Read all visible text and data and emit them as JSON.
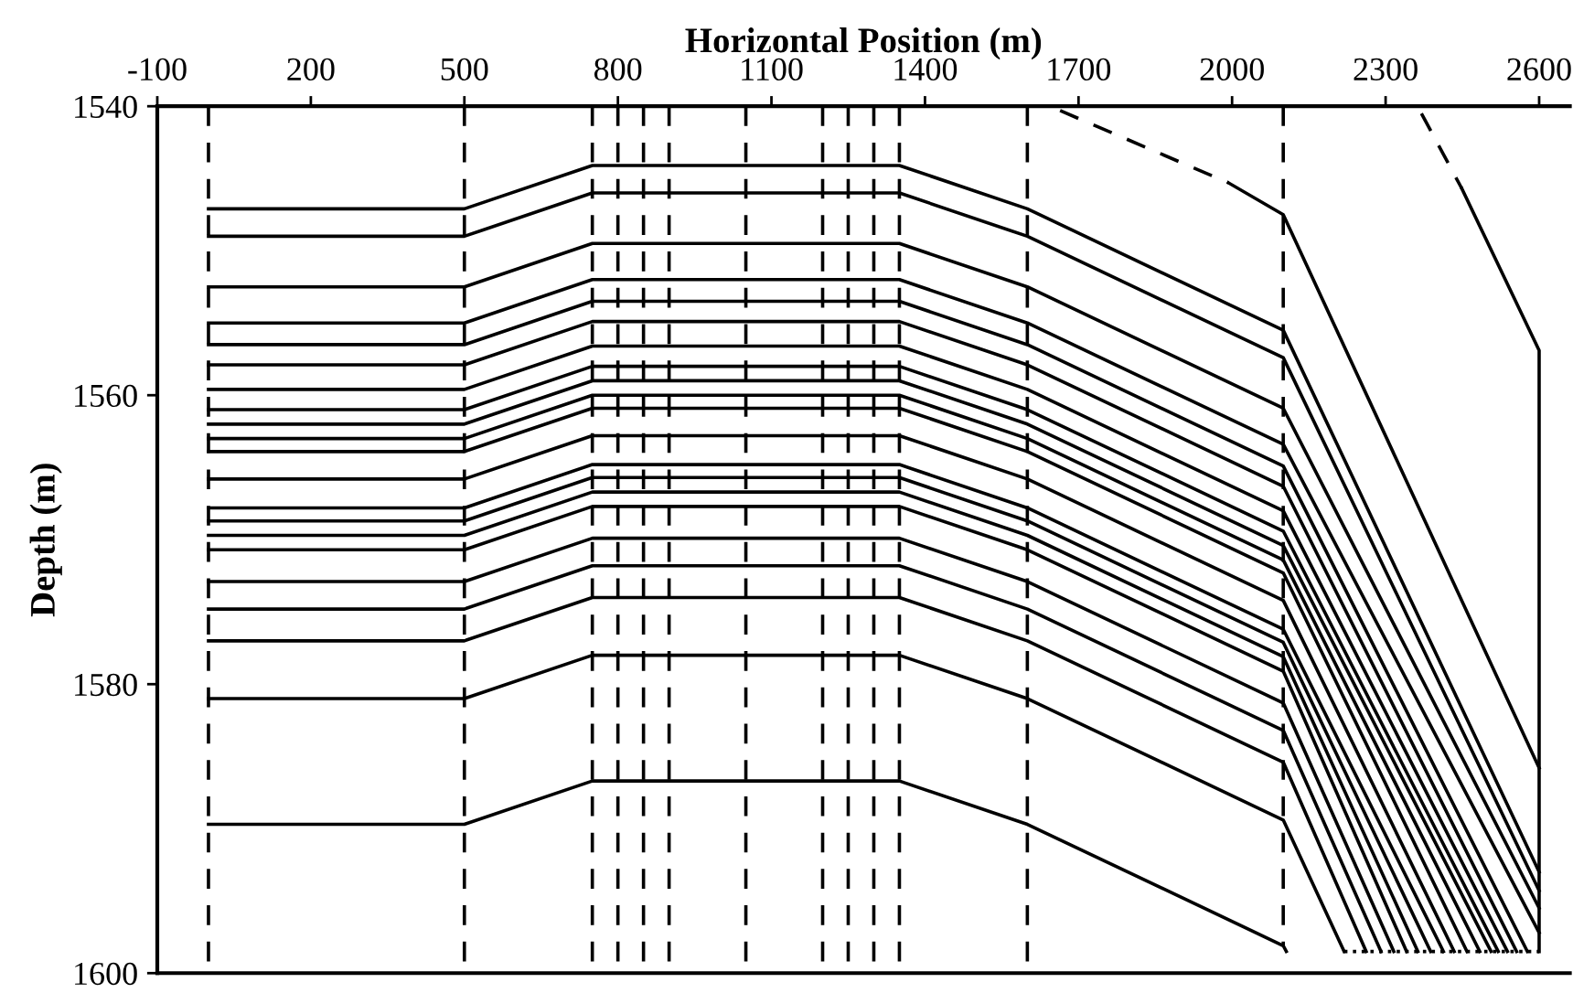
{
  "chart_data": {
    "type": "line",
    "xlabel": "Horizontal Position (m)",
    "ylabel": "Depth (m)",
    "xlim": [
      -100,
      2660
    ],
    "ylim": [
      1600,
      1540
    ],
    "xticks": [
      -100,
      200,
      500,
      800,
      1100,
      1400,
      1700,
      2000,
      2300,
      2600
    ],
    "yticks": [
      1540,
      1560,
      1580,
      1600
    ],
    "series": [
      {
        "color": "#000000",
        "line_style": "dashed",
        "x": [
          0,
          0
        ],
        "values": [
          1540,
          1600
        ]
      },
      {
        "color": "#000000",
        "line_style": "dashed",
        "x": [
          500,
          500
        ],
        "values": [
          1540,
          1600
        ]
      },
      {
        "color": "#000000",
        "line_style": "dashed",
        "x": [
          750,
          750
        ],
        "values": [
          1540,
          1600
        ]
      },
      {
        "color": "#000000",
        "line_style": "dashed",
        "x": [
          800,
          800
        ],
        "values": [
          1540,
          1600
        ]
      },
      {
        "color": "#000000",
        "line_style": "dashed",
        "x": [
          850,
          850
        ],
        "values": [
          1540,
          1600
        ]
      },
      {
        "color": "#000000",
        "line_style": "dashed",
        "x": [
          900,
          900
        ],
        "values": [
          1540,
          1600
        ]
      },
      {
        "color": "#000000",
        "line_style": "dashed",
        "x": [
          1050,
          1050
        ],
        "values": [
          1540,
          1600
        ]
      },
      {
        "color": "#000000",
        "line_style": "dashed",
        "x": [
          1200,
          1200
        ],
        "values": [
          1540,
          1600
        ]
      },
      {
        "color": "#000000",
        "line_style": "dashed",
        "x": [
          1250,
          1250
        ],
        "values": [
          1540,
          1600
        ]
      },
      {
        "color": "#000000",
        "line_style": "dashed",
        "x": [
          1300,
          1300
        ],
        "values": [
          1540,
          1600
        ]
      },
      {
        "color": "#000000",
        "line_style": "dashed",
        "x": [
          1350,
          1350
        ],
        "values": [
          1540,
          1600
        ]
      },
      {
        "color": "#000000",
        "line_style": "dashed",
        "x": [
          1600,
          1600
        ],
        "values": [
          1540,
          1600
        ]
      },
      {
        "color": "#000000",
        "line_style": "dashed",
        "x": [
          2100,
          2100
        ],
        "values": [
          1540,
          1598.1
        ]
      },
      {
        "color": "#000000",
        "x": [
          0,
          500,
          750,
          1350,
          1600,
          2100,
          2600
        ],
        "values": [
          1547.1,
          1547.1,
          1544.1,
          1544.1,
          1547.1,
          1555.5,
          1593.0
        ]
      },
      {
        "color": "#000000",
        "x": [
          0,
          500,
          750,
          1350,
          1600,
          2100,
          2600
        ],
        "values": [
          1549.0,
          1549.0,
          1546.0,
          1546.0,
          1549.0,
          1557.4,
          1594.3
        ]
      },
      {
        "color": "#000000",
        "x": [
          0,
          500,
          750,
          1350,
          1600,
          2100,
          2600
        ],
        "values": [
          1552.5,
          1552.5,
          1549.5,
          1549.5,
          1552.5,
          1560.9,
          1595.5
        ]
      },
      {
        "color": "#000000",
        "x": [
          0,
          500,
          750,
          1350,
          1600,
          2100,
          2600
        ],
        "values": [
          1555.0,
          1555.0,
          1552.0,
          1552.0,
          1555.0,
          1563.4,
          1597.2
        ]
      },
      {
        "color": "#000000",
        "x": [
          0,
          500,
          750,
          1350,
          1600,
          2100,
          2577
        ],
        "values": [
          1556.5,
          1556.5,
          1553.5,
          1553.5,
          1556.5,
          1564.9,
          1598.5
        ]
      },
      {
        "color": "#000000",
        "x": [
          0,
          500,
          750,
          1350,
          1600,
          2100,
          2556
        ],
        "values": [
          1557.9,
          1557.9,
          1554.9,
          1554.9,
          1557.9,
          1566.3,
          1598.5
        ]
      },
      {
        "color": "#000000",
        "x": [
          0,
          500,
          750,
          1350,
          1600,
          2100,
          2538
        ],
        "values": [
          1559.6,
          1559.6,
          1556.6,
          1556.6,
          1559.6,
          1568.0,
          1598.5
        ]
      },
      {
        "color": "#000000",
        "x": [
          0,
          500,
          750,
          1350,
          1600,
          2100,
          2520
        ],
        "values": [
          1561.0,
          1561.0,
          1558.0,
          1558.0,
          1561.0,
          1569.4,
          1598.5
        ]
      },
      {
        "color": "#000000",
        "x": [
          0,
          500,
          750,
          1350,
          1600,
          2100,
          2506
        ],
        "values": [
          1562.0,
          1562.0,
          1559.0,
          1559.0,
          1562.0,
          1570.4,
          1598.5
        ]
      },
      {
        "color": "#000000",
        "x": [
          0,
          500,
          750,
          1350,
          1600,
          2100,
          2484
        ],
        "values": [
          1563.0,
          1563.0,
          1560.0,
          1560.0,
          1563.0,
          1571.4,
          1598.5
        ]
      },
      {
        "color": "#000000",
        "x": [
          0,
          500,
          750,
          1350,
          1600,
          2100,
          2459
        ],
        "values": [
          1563.9,
          1563.9,
          1560.9,
          1560.9,
          1563.9,
          1572.3,
          1598.5
        ]
      },
      {
        "color": "#000000",
        "x": [
          0,
          500,
          750,
          1350,
          1600,
          2100,
          2434
        ],
        "values": [
          1565.8,
          1565.8,
          1562.8,
          1562.8,
          1565.8,
          1574.2,
          1598.5
        ]
      },
      {
        "color": "#000000",
        "x": [
          0,
          500,
          750,
          1350,
          1600,
          2100,
          2413
        ],
        "values": [
          1567.8,
          1567.8,
          1564.8,
          1564.8,
          1567.8,
          1576.2,
          1598.5
        ]
      },
      {
        "color": "#000000",
        "x": [
          0,
          500,
          750,
          1350,
          1600,
          2100,
          2388
        ],
        "values": [
          1568.7,
          1568.7,
          1565.7,
          1565.7,
          1568.7,
          1577.1,
          1598.5
        ]
      },
      {
        "color": "#000000",
        "x": [
          0,
          500,
          750,
          1350,
          1600,
          2100,
          2363
        ],
        "values": [
          1569.7,
          1569.7,
          1566.7,
          1566.7,
          1569.7,
          1578.1,
          1598.5
        ]
      },
      {
        "color": "#000000",
        "x": [
          0,
          500,
          750,
          1350,
          1600,
          2100,
          2341
        ],
        "values": [
          1570.7,
          1570.7,
          1567.7,
          1567.7,
          1570.7,
          1579.1,
          1598.5
        ]
      },
      {
        "color": "#000000",
        "x": [
          0,
          500,
          750,
          1350,
          1600,
          2100,
          2316
        ],
        "values": [
          1572.9,
          1572.9,
          1569.9,
          1569.9,
          1572.9,
          1581.3,
          1598.5
        ]
      },
      {
        "color": "#000000",
        "x": [
          0,
          500,
          750,
          1350,
          1600,
          2100,
          2291
        ],
        "values": [
          1574.8,
          1574.8,
          1571.8,
          1571.8,
          1574.8,
          1583.2,
          1598.5
        ]
      },
      {
        "color": "#000000",
        "x": [
          0,
          500,
          750,
          1350,
          1600,
          2100,
          2262
        ],
        "values": [
          1577.0,
          1577.0,
          1574.0,
          1574.0,
          1577.0,
          1585.4,
          1598.5
        ]
      },
      {
        "color": "#000000",
        "x": [
          0,
          500,
          750,
          1350,
          1600,
          2100,
          2219
        ],
        "values": [
          1581.0,
          1581.0,
          1578.0,
          1578.0,
          1581.0,
          1589.4,
          1598.5
        ]
      },
      {
        "color": "#000000",
        "x": [
          0,
          500,
          750,
          1350,
          1600,
          2100,
          2106
        ],
        "values": [
          1589.7,
          1589.7,
          1586.7,
          1586.7,
          1589.7,
          1598.1,
          1598.5
        ]
      },
      {
        "color": "#000000",
        "line_style": "dashed",
        "x": [
          1664,
          1993
        ],
        "values": [
          1540.3,
          1545.3
        ]
      },
      {
        "color": "#000000",
        "x": [
          1993,
          2100,
          2600
        ],
        "values": [
          1545.3,
          1547.5,
          1585.8
        ]
      },
      {
        "color": "#000000",
        "line_style": "dashed",
        "x": [
          2370,
          2449
        ],
        "values": [
          1540.5,
          1545.7
        ]
      },
      {
        "color": "#000000",
        "x": [
          2449,
          2600,
          2600
        ],
        "values": [
          1545.7,
          1556.9,
          1598.5
        ]
      },
      {
        "color": "#000000",
        "line_style": "dotted",
        "x": [
          2219,
          2600
        ],
        "values": [
          1598.5,
          1598.5
        ]
      }
    ]
  }
}
